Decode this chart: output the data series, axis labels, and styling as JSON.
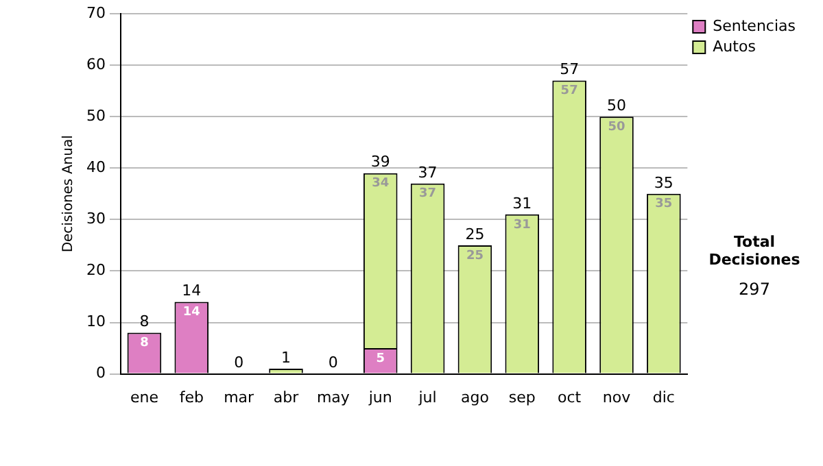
{
  "chart_data": {
    "type": "bar",
    "stacked": true,
    "ylabel": "Decisiones Anual",
    "categories": [
      "ene",
      "feb",
      "mar",
      "abr",
      "may",
      "jun",
      "jul",
      "ago",
      "sep",
      "oct",
      "nov",
      "dic"
    ],
    "series": [
      {
        "name": "Sentencias",
        "color": "#de7fc3",
        "values": [
          8,
          14,
          0,
          0,
          0,
          5,
          0,
          0,
          0,
          0,
          0,
          0
        ],
        "value_labels": [
          "8",
          "14",
          null,
          null,
          null,
          "5",
          null,
          null,
          null,
          null,
          null,
          null
        ]
      },
      {
        "name": "Autos",
        "color": "#d4ec94",
        "values": [
          0,
          0,
          0,
          1,
          0,
          34,
          37,
          25,
          31,
          57,
          50,
          35
        ],
        "value_labels": [
          null,
          null,
          null,
          null,
          null,
          "34",
          "37",
          "25",
          "31",
          "57",
          "50",
          "35"
        ]
      }
    ],
    "totals": [
      "8",
      "14",
      "0",
      "1",
      "0",
      "39",
      "37",
      "25",
      "31",
      "57",
      "50",
      "35"
    ],
    "ylim": [
      0,
      70
    ],
    "yticks": [
      0,
      10,
      20,
      30,
      40,
      50,
      60,
      70
    ],
    "grid": "y",
    "legend": "right",
    "annotations": [
      "Total Decisiones",
      "297"
    ]
  }
}
